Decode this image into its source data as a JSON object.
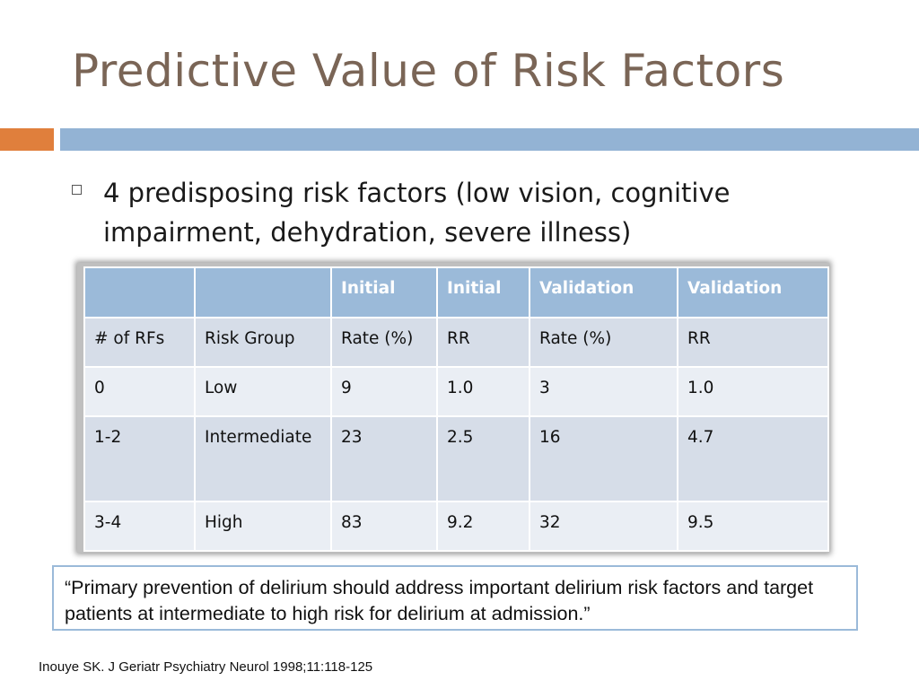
{
  "slide": {
    "title": "Predictive Value of Risk Factors",
    "accent_colors": {
      "title_text": "#7a6556",
      "orange_bar": "#e07f3c",
      "blue_bar": "#93b3d4",
      "table_header": "#9bbad9"
    }
  },
  "bullet": {
    "text": "4 predisposing risk factors (low vision, cognitive impairment, dehydration, severe illness)"
  },
  "table": {
    "header_row": [
      "",
      "",
      "Initial",
      "Initial",
      "Validation",
      "Validation"
    ],
    "rows": [
      [
        "# of RFs",
        "Risk Group",
        "Rate (%)",
        "RR",
        "Rate (%)",
        "RR"
      ],
      [
        "0",
        "Low",
        "9",
        "1.0",
        "3",
        "1.0"
      ],
      [
        "1-2",
        "Intermediate",
        "23",
        "2.5",
        "16",
        "4.7"
      ],
      [
        "3-4",
        "High",
        "83",
        "9.2",
        "32",
        "9.5"
      ]
    ]
  },
  "quote": {
    "text": "“Primary prevention of delirium should address important delirium risk factors and target patients at intermediate to high risk for delirium at admission.”"
  },
  "citation": {
    "text": "Inouye SK.  J Geriatr Psychiatry Neurol 1998;11:118-125"
  }
}
